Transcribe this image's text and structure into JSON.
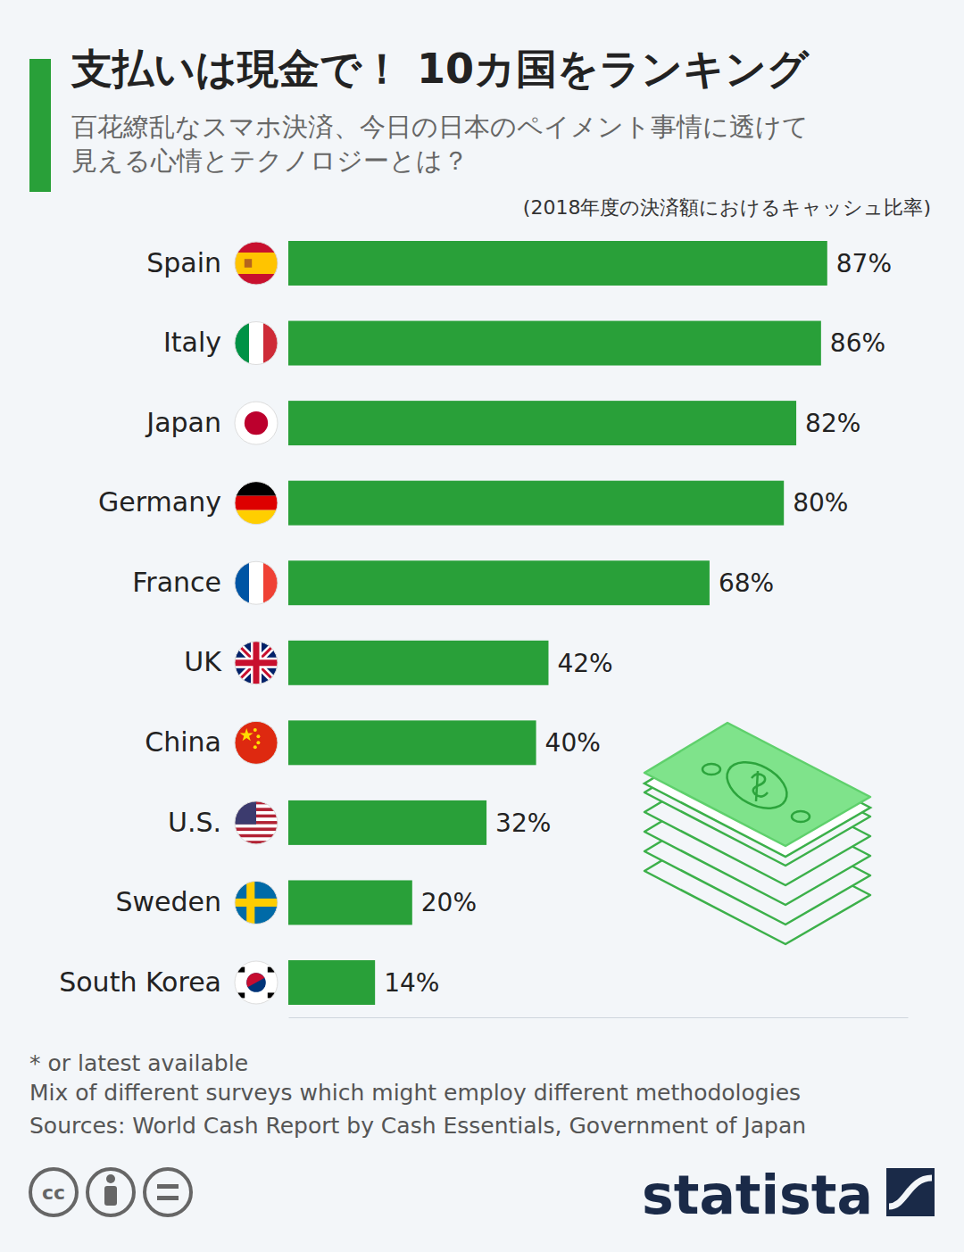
{
  "chart_data": {
    "type": "bar",
    "orientation": "horizontal",
    "title": "支払いは現金で！ 10カ国をランキング",
    "subtitle": "百花繚乱なスマホ決済、今日の日本のペイメント事情に透けて見える心情とテクノロジーとは？",
    "unit_note": "(2018年度の決済額におけるキャッシュ比率)",
    "categories": [
      "Spain",
      "Italy",
      "Japan",
      "Germany",
      "France",
      "UK",
      "China",
      "U.S.",
      "Sweden",
      "South Korea"
    ],
    "values": [
      87,
      86,
      82,
      80,
      68,
      42,
      40,
      32,
      20,
      14
    ],
    "value_labels": [
      "87%",
      "86%",
      "82%",
      "80%",
      "68%",
      "42%",
      "40%",
      "32%",
      "20%",
      "14%"
    ],
    "data_labels": true,
    "color": "#29a039",
    "xlim": [
      0,
      100
    ],
    "xticks": [],
    "tick_labels": "y",
    "grid": false,
    "footnotes": [
      "* or latest available",
      "Mix of different surveys which might employ different methodologies",
      "Sources: World Cash Report by Cash Essentials, Government of Japan"
    ],
    "license": "cc",
    "brand": "statista"
  }
}
